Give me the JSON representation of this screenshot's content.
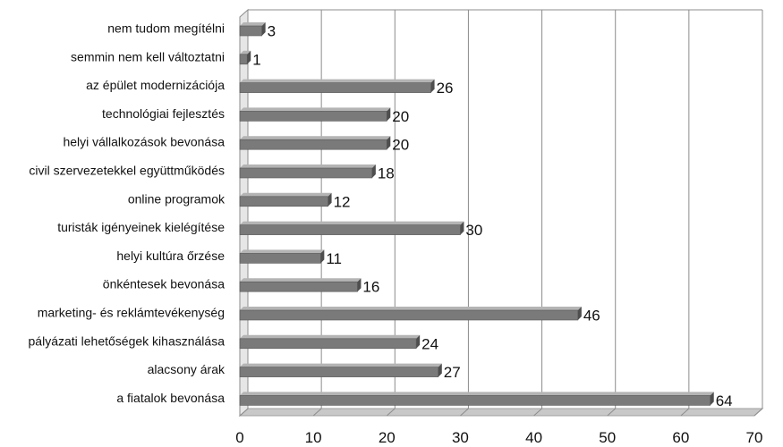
{
  "chart_data": {
    "type": "bar",
    "orientation": "horizontal",
    "title": "",
    "xlabel": "",
    "ylabel": "",
    "categories": [
      "nem tudom megítélni",
      "semmin nem kell változtatni",
      "az épület modernizációja",
      "technológiai fejlesztés",
      "helyi vállalkozások bevonása",
      "civil szervezetekkel együttműködés",
      "online programok",
      "turisták igényeinek kielégítése",
      "helyi kultúra őrzése",
      "önkéntesek bevonása",
      "marketing- és reklámtevékenység",
      "pályázati lehetőségek kihasználása",
      "alacsony árak",
      "a fiatalok bevonása"
    ],
    "values": [
      3,
      1,
      26,
      20,
      20,
      18,
      12,
      30,
      11,
      16,
      46,
      24,
      27,
      64
    ],
    "xlim": [
      0,
      70
    ],
    "ticks": [
      0,
      10,
      20,
      30,
      40,
      50,
      60,
      70
    ],
    "tick_labels": [
      "0",
      "10",
      "20",
      "30",
      "40",
      "50",
      "60",
      "70"
    ],
    "grid": true,
    "style": "3d",
    "colors": {
      "bar_front": "#7a7a7a",
      "bar_top": "#b4b4b4",
      "bar_side": "#4e4e4e",
      "grid": "#8c8c8c",
      "floor": "#a0a0a0"
    }
  }
}
